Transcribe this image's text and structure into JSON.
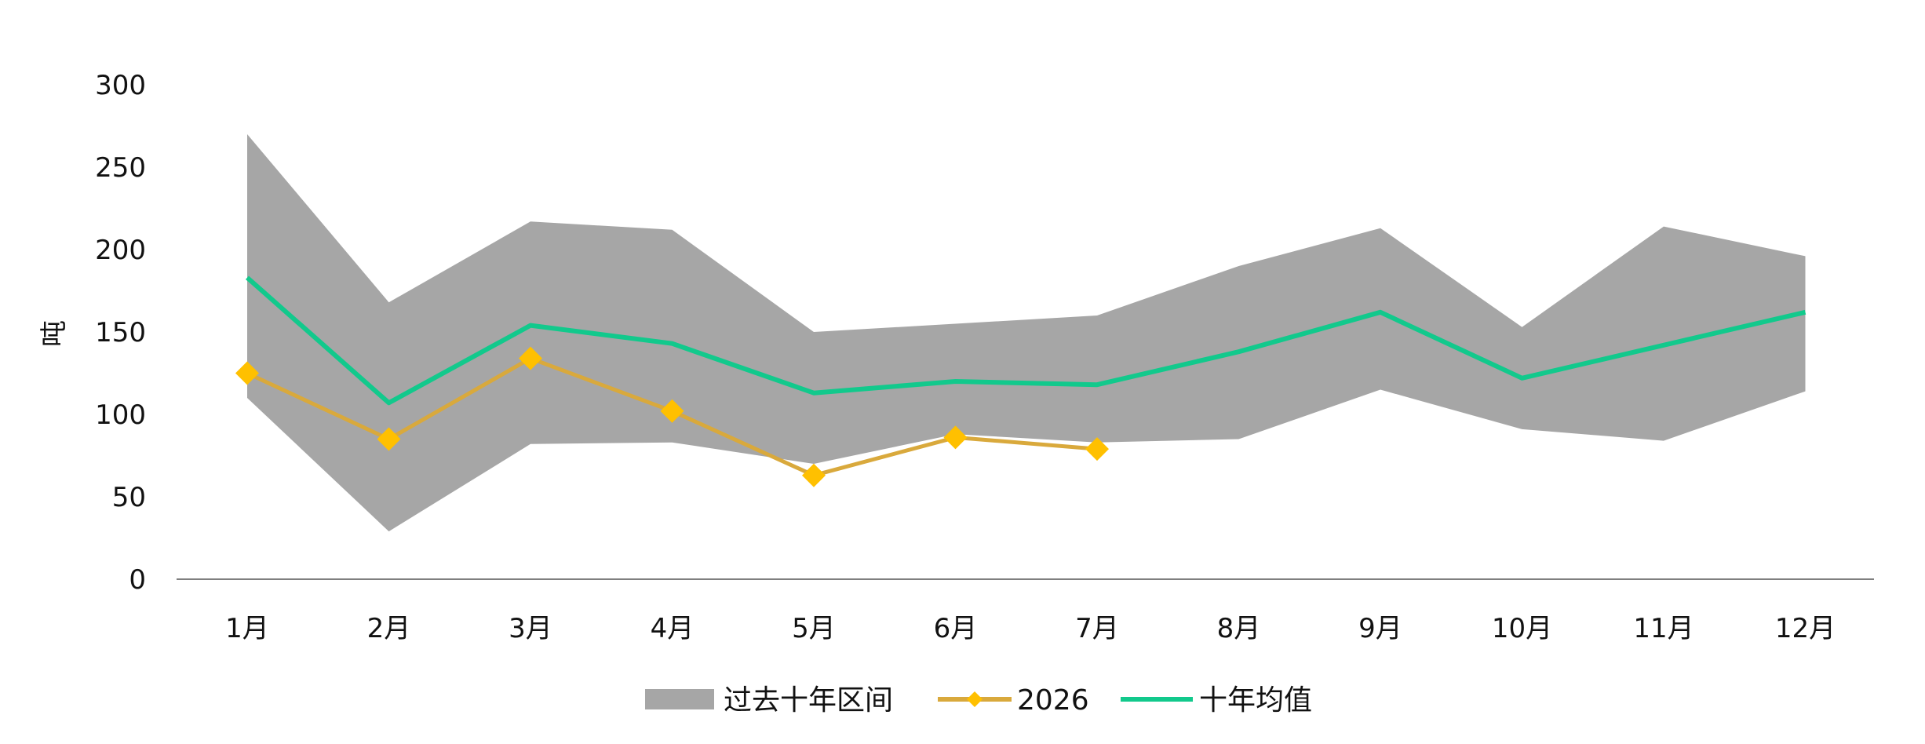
{
  "chart_data": {
    "type": "line",
    "title": "",
    "ylabel": "吨",
    "xlabel": "",
    "ylim": [
      0,
      300
    ],
    "yticks": [
      0,
      50,
      100,
      150,
      200,
      250,
      300
    ],
    "categories": [
      "1月",
      "2月",
      "3月",
      "4月",
      "5月",
      "6月",
      "7月",
      "8月",
      "9月",
      "10月",
      "11月",
      "12月"
    ],
    "band": {
      "name": "过去十年区间",
      "color": "#a6a6a6",
      "upper": [
        270,
        168,
        217,
        212,
        150,
        155,
        160,
        190,
        213,
        153,
        214,
        196
      ],
      "lower": [
        110,
        29,
        82,
        83,
        70,
        88,
        83,
        85,
        115,
        91,
        84,
        114
      ]
    },
    "series": [
      {
        "name": "2026",
        "color": "#d9a93c",
        "marker_color": "#ffc000",
        "marker": "diamond",
        "values": [
          125,
          85,
          134,
          102,
          63,
          86,
          79,
          null,
          null,
          null,
          null,
          null
        ]
      },
      {
        "name": "十年均值",
        "color": "#12c98c",
        "values": [
          183,
          107,
          154,
          143,
          113,
          120,
          118,
          138,
          162,
          122,
          142,
          162
        ]
      }
    ],
    "grid": false,
    "legend_position": "bottom"
  }
}
